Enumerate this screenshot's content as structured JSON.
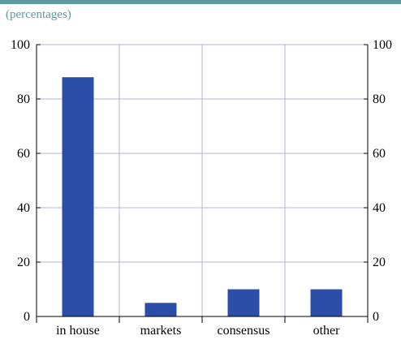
{
  "subtitle": "(percentages)",
  "colors": {
    "bar": "#2b4ea8",
    "grid": "#b3b3dd",
    "axis": "#000000",
    "accent": "#5e9aa0"
  },
  "chart_data": {
    "type": "bar",
    "title": "",
    "xlabel": "",
    "ylabel": "",
    "categories": [
      "in house",
      "markets",
      "consensus",
      "other"
    ],
    "values": [
      88,
      5,
      10,
      10
    ],
    "ylim": [
      0,
      100
    ],
    "yticks": [
      0,
      20,
      40,
      60,
      80,
      100
    ],
    "ytick_labels": [
      "0",
      "20",
      "40",
      "60",
      "80",
      "100"
    ],
    "grid": true,
    "right_axis": true
  }
}
